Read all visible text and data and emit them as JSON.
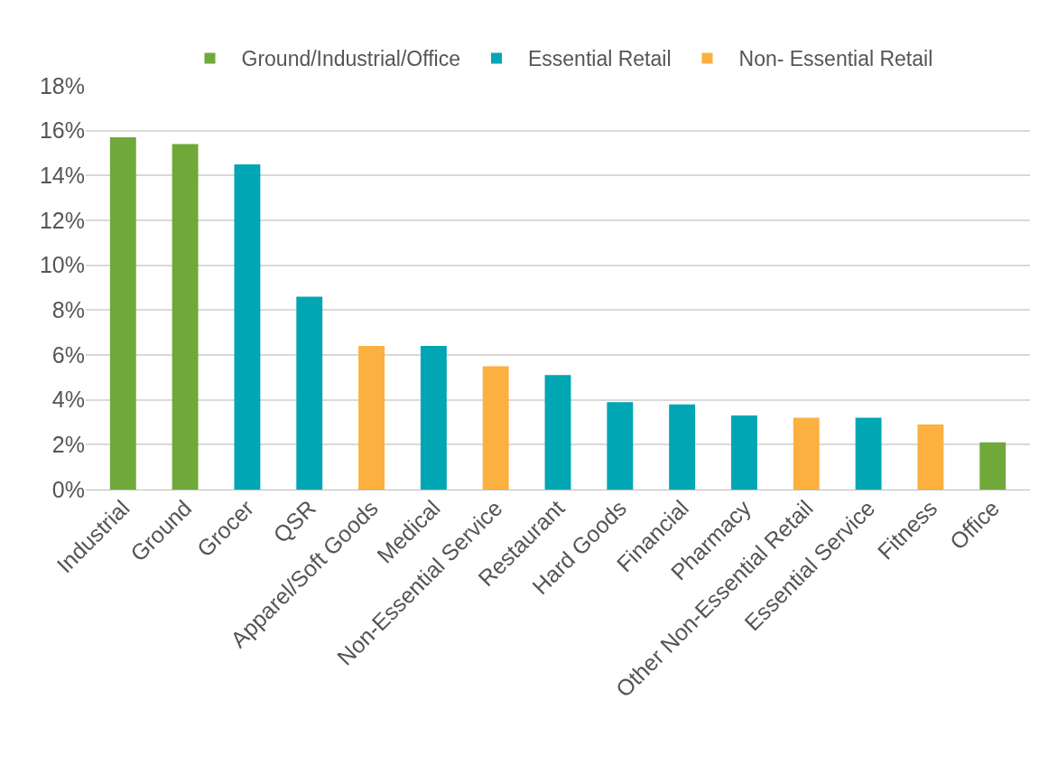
{
  "chart_data": {
    "type": "bar",
    "categories": [
      "Industrial",
      "Ground",
      "Grocer",
      "QSR",
      "Apparel/Soft Goods",
      "Medical",
      "Non-Essential Service",
      "Restaurant",
      "Hard Goods",
      "Financial",
      "Pharmacy",
      "Other Non-Essential Retail",
      "Essential Service",
      "Fitness",
      "Office"
    ],
    "series": [
      {
        "name": "Ground/Industrial/Office",
        "color": "#70a83a",
        "values": [
          15.7,
          15.4,
          null,
          null,
          null,
          null,
          null,
          null,
          null,
          null,
          null,
          null,
          null,
          null,
          2.1
        ]
      },
      {
        "name": "Essential Retail",
        "color": "#00a6b4",
        "values": [
          null,
          null,
          14.5,
          8.6,
          null,
          6.4,
          null,
          5.1,
          3.9,
          3.8,
          3.3,
          null,
          3.2,
          null,
          null
        ]
      },
      {
        "name": "Non- Essential Retail",
        "color": "#fbb040",
        "values": [
          null,
          null,
          null,
          null,
          6.4,
          null,
          5.5,
          null,
          null,
          null,
          null,
          3.2,
          null,
          2.9,
          null
        ]
      }
    ],
    "ylim": [
      0,
      18
    ],
    "yticks": [
      {
        "value": 0,
        "label": "0%"
      },
      {
        "value": 2,
        "label": "2%"
      },
      {
        "value": 4,
        "label": "4%"
      },
      {
        "value": 6,
        "label": "6%"
      },
      {
        "value": 8,
        "label": "8%"
      },
      {
        "value": 10,
        "label": "10%"
      },
      {
        "value": 12,
        "label": "12%"
      },
      {
        "value": 14,
        "label": "14%"
      },
      {
        "value": 16,
        "label": "16%"
      },
      {
        "value": 18,
        "label": "18%"
      }
    ],
    "grid": "y",
    "legend": "top"
  }
}
